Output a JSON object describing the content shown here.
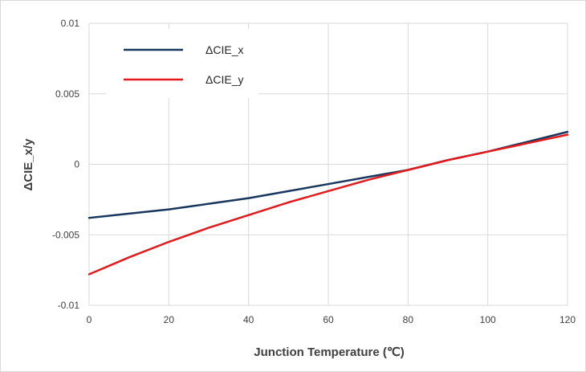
{
  "chart_data": {
    "type": "line",
    "xlabel": "Junction Temperature (℃)",
    "ylabel": "ΔCIE_x/y",
    "xlim": [
      0,
      120
    ],
    "ylim": [
      -0.01,
      0.01
    ],
    "x_ticks": [
      0,
      20,
      40,
      60,
      80,
      100,
      120
    ],
    "x_tick_labels": [
      "0",
      "20",
      "40",
      "60",
      "80",
      "100",
      "120"
    ],
    "y_ticks": [
      -0.01,
      -0.005,
      0,
      0.005,
      0.01
    ],
    "y_tick_labels": [
      "-0.01",
      "-0.005",
      "0",
      "0.005",
      "0.01"
    ],
    "grid": true,
    "legend_position": "top-left",
    "x": [
      0,
      10,
      20,
      30,
      40,
      50,
      60,
      70,
      80,
      90,
      100,
      110,
      120
    ],
    "series": [
      {
        "name": "ΔCIE_x",
        "color": "#17375e",
        "values": [
          -0.0038,
          -0.0035,
          -0.0032,
          -0.0028,
          -0.0024,
          -0.0019,
          -0.0014,
          -0.0009,
          -0.0004,
          0.0003,
          0.0009,
          0.0016,
          0.0023
        ]
      },
      {
        "name": "ΔCIE_y",
        "color": "#e31a1c",
        "values": [
          -0.0078,
          -0.0066,
          -0.0055,
          -0.0045,
          -0.0036,
          -0.0027,
          -0.0019,
          -0.0011,
          -0.0004,
          0.0003,
          0.0009,
          0.0015,
          0.0021
        ]
      }
    ]
  }
}
